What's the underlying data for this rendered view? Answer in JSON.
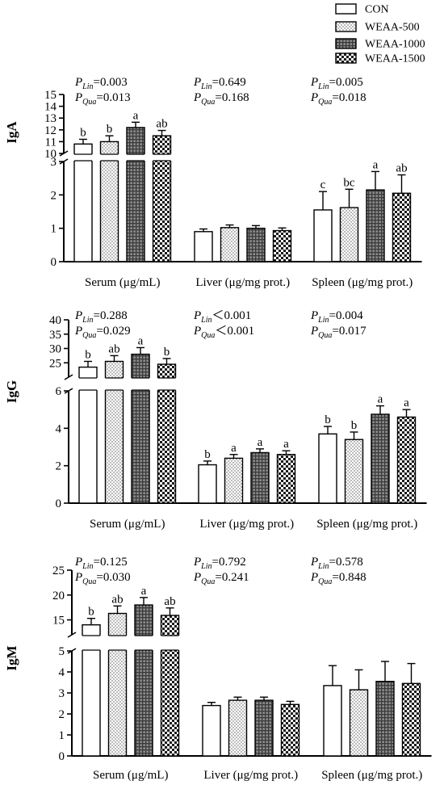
{
  "legend": {
    "placement": "top-right",
    "items": [
      {
        "label": "CON",
        "pattern": "white"
      },
      {
        "label": "WEAA-500",
        "pattern": "dots"
      },
      {
        "label": "WEAA-1000",
        "pattern": "grid"
      },
      {
        "label": "WEAA-1500",
        "pattern": "checker"
      }
    ]
  },
  "chart_data": [
    {
      "type": "bar",
      "ylabel": "IgA",
      "broken_axis": true,
      "upper_ylim": [
        10,
        15
      ],
      "upper_ticks": [
        10,
        11,
        12,
        13,
        14,
        15
      ],
      "lower_ylim": [
        0,
        3
      ],
      "lower_ticks": [
        0,
        1,
        2,
        3
      ],
      "categories": [
        "Serum (μg/mL)",
        "Liver (μg/mg prot.)",
        "Spleen (μg/mg prot.)"
      ],
      "stats": [
        {
          "lin_label": "P",
          "lin_sub": "Lin",
          "lin_value": "=0.003",
          "qua_label": "P",
          "qua_sub": "Qua",
          "qua_value": "=0.013"
        },
        {
          "lin_label": "P",
          "lin_sub": "Lin",
          "lin_value": "=0.649",
          "qua_label": "P",
          "qua_sub": "Qua",
          "qua_value": "=0.168"
        },
        {
          "lin_label": "P",
          "lin_sub": "Lin",
          "lin_value": "=0.005",
          "qua_label": "P",
          "qua_sub": "Qua",
          "qua_value": "=0.018"
        }
      ],
      "series": [
        {
          "name": "CON",
          "values": [
            10.8,
            0.9,
            1.55
          ],
          "errors": [
            0.4,
            0.08,
            0.55
          ],
          "letters": [
            "b",
            "",
            "c"
          ]
        },
        {
          "name": "WEAA-500",
          "values": [
            11.0,
            1.02,
            1.62
          ],
          "errors": [
            0.5,
            0.08,
            0.55
          ],
          "letters": [
            "b",
            "",
            "bc"
          ]
        },
        {
          "name": "WEAA-1000",
          "values": [
            12.2,
            1.0,
            2.15
          ],
          "errors": [
            0.45,
            0.08,
            0.55
          ],
          "letters": [
            "a",
            "",
            "a"
          ]
        },
        {
          "name": "WEAA-1500",
          "values": [
            11.5,
            0.93,
            2.05
          ],
          "errors": [
            0.45,
            0.08,
            0.55
          ],
          "letters": [
            "ab",
            "",
            "ab"
          ]
        }
      ]
    },
    {
      "type": "bar",
      "ylabel": "IgG",
      "broken_axis": true,
      "upper_ylim": [
        20,
        40
      ],
      "upper_ticks": [
        25,
        30,
        35,
        40
      ],
      "lower_ylim": [
        0,
        6
      ],
      "lower_ticks": [
        0,
        2,
        4,
        6
      ],
      "categories": [
        "Serum (μg/mL)",
        "Liver (μg/mg prot.)",
        "Spleen (μg/mg prot.)"
      ],
      "stats": [
        {
          "lin_label": "P",
          "lin_sub": "Lin",
          "lin_value": "=0.288",
          "qua_label": "P",
          "qua_sub": "Qua",
          "qua_value": "=0.029"
        },
        {
          "lin_label": "P",
          "lin_sub": "Lin",
          "lin_value": "＜0.001",
          "qua_label": "P",
          "qua_sub": "Qua",
          "qua_value": "＜0.001"
        },
        {
          "lin_label": "P",
          "lin_sub": "Lin",
          "lin_value": "=0.004",
          "qua_label": "P",
          "qua_sub": "Qua",
          "qua_value": "=0.017"
        }
      ],
      "series": [
        {
          "name": "CON",
          "values": [
            23.5,
            2.05,
            3.7
          ],
          "errors": [
            2.0,
            0.2,
            0.4
          ],
          "letters": [
            "b",
            "b",
            "b"
          ]
        },
        {
          "name": "WEAA-500",
          "values": [
            25.5,
            2.4,
            3.4
          ],
          "errors": [
            2.0,
            0.2,
            0.4
          ],
          "letters": [
            "ab",
            "a",
            "b"
          ]
        },
        {
          "name": "WEAA-1000",
          "values": [
            28.0,
            2.7,
            4.75
          ],
          "errors": [
            2.3,
            0.2,
            0.45
          ],
          "letters": [
            "a",
            "a",
            "a"
          ]
        },
        {
          "name": "WEAA-1500",
          "values": [
            24.5,
            2.6,
            4.6
          ],
          "errors": [
            2.0,
            0.2,
            0.4
          ],
          "letters": [
            "b",
            "a",
            "a"
          ]
        }
      ]
    },
    {
      "type": "bar",
      "ylabel": "IgM",
      "broken_axis": true,
      "upper_ylim": [
        12,
        25
      ],
      "upper_ticks": [
        15,
        20,
        25
      ],
      "lower_ylim": [
        0,
        5
      ],
      "lower_ticks": [
        0,
        1,
        2,
        3,
        4,
        5
      ],
      "categories": [
        "Serum (μg/mL)",
        "Liver (μg/mg prot.)",
        "Spleen (μg/mg prot.)"
      ],
      "stats": [
        {
          "lin_label": "P",
          "lin_sub": "Lin",
          "lin_value": "=0.125",
          "qua_label": "P",
          "qua_sub": "Qua",
          "qua_value": "=0.030"
        },
        {
          "lin_label": "P",
          "lin_sub": "Lin",
          "lin_value": "=0.792",
          "qua_label": "P",
          "qua_sub": "Qua",
          "qua_value": "=0.241"
        },
        {
          "lin_label": "P",
          "lin_sub": "Lin",
          "lin_value": "=0.578",
          "qua_label": "P",
          "qua_sub": "Qua",
          "qua_value": "=0.848"
        }
      ],
      "series": [
        {
          "name": "CON",
          "values": [
            14.0,
            2.4,
            3.35
          ],
          "errors": [
            1.3,
            0.15,
            0.95
          ],
          "letters": [
            "b",
            "",
            ""
          ]
        },
        {
          "name": "WEAA-500",
          "values": [
            16.3,
            2.65,
            3.15
          ],
          "errors": [
            1.5,
            0.15,
            0.95
          ],
          "letters": [
            "ab",
            "",
            ""
          ]
        },
        {
          "name": "WEAA-1000",
          "values": [
            18.0,
            2.65,
            3.55
          ],
          "errors": [
            1.5,
            0.15,
            0.95
          ],
          "letters": [
            "a",
            "",
            ""
          ]
        },
        {
          "name": "WEAA-1500",
          "values": [
            15.9,
            2.45,
            3.45
          ],
          "errors": [
            1.5,
            0.15,
            0.95
          ],
          "letters": [
            "ab",
            "",
            ""
          ]
        }
      ]
    }
  ]
}
